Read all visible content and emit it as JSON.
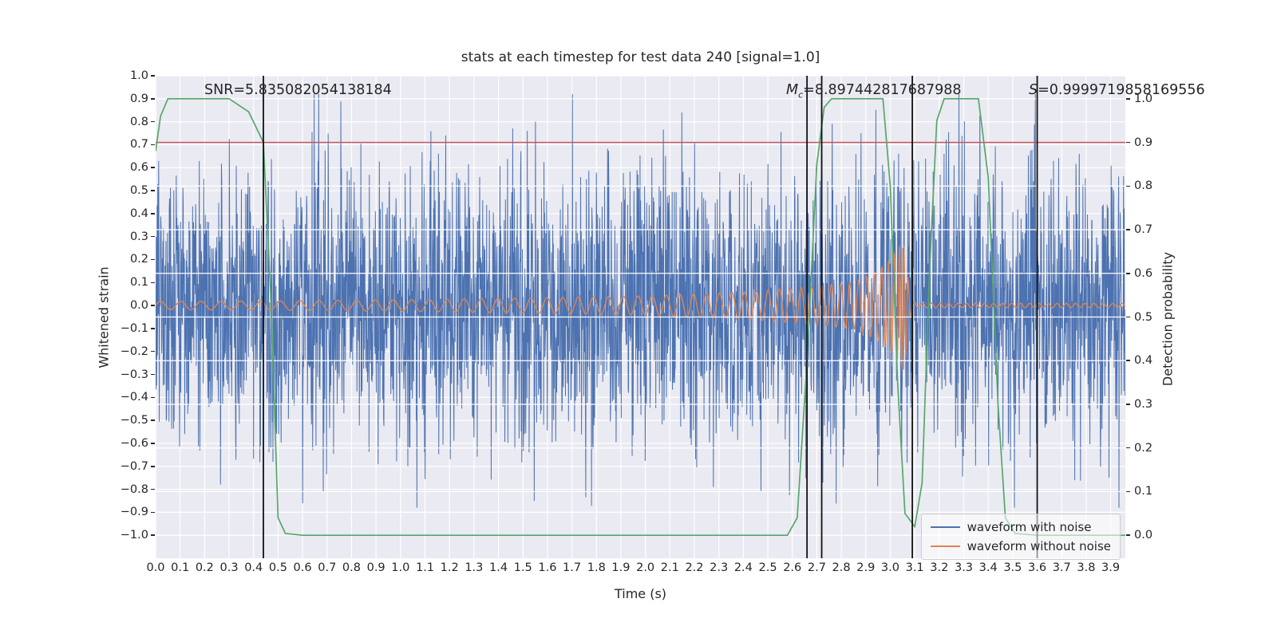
{
  "chart_data": {
    "type": "line",
    "title": "stats at each timestep for test data 240 [signal=1.0]",
    "xlabel": "Time (s)",
    "ylabel_left": "Whitened strain",
    "ylabel_right": "Detection probability",
    "xlim": [
      0,
      3.96
    ],
    "ylim_left": [
      -1.1,
      1.0
    ],
    "right_axis_map": {
      "r0_left_value": -1.0,
      "r1_left_value": 0.9
    },
    "grid": true,
    "background": "#eaeaf2",
    "grid_color": "#ffffff",
    "x_tick_labels": [
      "0.0",
      "0.1",
      "0.2",
      "0.3",
      "0.4",
      "0.5",
      "0.6",
      "0.7",
      "0.8",
      "0.9",
      "1.0",
      "1.1",
      "1.2",
      "1.3",
      "1.4",
      "1.5",
      "1.6",
      "1.7",
      "1.8",
      "1.9",
      "2.0",
      "2.1",
      "2.2",
      "2.3",
      "2.4",
      "2.5",
      "2.6",
      "2.7",
      "2.8",
      "2.9",
      "3.0",
      "3.1",
      "3.2",
      "3.3",
      "3.4",
      "3.5",
      "3.6",
      "3.7",
      "3.8",
      "3.9"
    ],
    "y_tick_labels_left": [
      "1.0",
      "0.9",
      "0.8",
      "0.7",
      "0.6",
      "0.5",
      "0.4",
      "0.3",
      "0.2",
      "0.1",
      "0.0",
      "−0.1",
      "−0.2",
      "−0.3",
      "−0.4",
      "−0.5",
      "−0.6",
      "−0.7",
      "−0.8",
      "−0.9",
      "−1.0"
    ],
    "y_tick_labels_right": [
      "1.0",
      "0.9",
      "0.8",
      "0.7",
      "0.6",
      "0.5",
      "0.4",
      "0.3",
      "0.2",
      "0.1",
      "0.0"
    ],
    "series": [
      {
        "name": "waveform with noise",
        "color": "#4c72b0",
        "kind": "gaussian_noise_plus_signal",
        "noise_seed": 240,
        "noise_std": 0.3,
        "n_samples": 3200,
        "clip": [
          -0.88,
          0.92
        ]
      },
      {
        "name": "waveform without noise",
        "color": "#dd8452",
        "kind": "chirp",
        "n_samples": 6000,
        "envelope": [
          [
            0,
            0.018
          ],
          [
            0.5,
            0.02
          ],
          [
            1.0,
            0.025
          ],
          [
            1.5,
            0.032
          ],
          [
            2.0,
            0.042
          ],
          [
            2.4,
            0.058
          ],
          [
            2.7,
            0.085
          ],
          [
            2.85,
            0.1
          ],
          [
            2.95,
            0.15
          ],
          [
            3.0,
            0.2
          ],
          [
            3.03,
            0.24
          ],
          [
            3.05,
            0.27
          ],
          [
            3.062,
            0.23
          ],
          [
            3.075,
            0.09
          ],
          [
            3.09,
            0.02
          ],
          [
            3.12,
            0.01
          ],
          [
            3.96,
            0.009
          ]
        ],
        "frequency_hz": [
          [
            0,
            12
          ],
          [
            0.5,
            12.5
          ],
          [
            1.0,
            13.5
          ],
          [
            1.5,
            15
          ],
          [
            2.0,
            17
          ],
          [
            2.4,
            20
          ],
          [
            2.7,
            24
          ],
          [
            2.85,
            28
          ],
          [
            2.95,
            33
          ],
          [
            3.0,
            40
          ],
          [
            3.03,
            48
          ],
          [
            3.05,
            58
          ],
          [
            3.065,
            60
          ],
          [
            3.08,
            40
          ],
          [
            3.12,
            28
          ],
          [
            3.96,
            26
          ]
        ]
      },
      {
        "name": "detection probability",
        "color": "#55a868",
        "axis": "right",
        "kind": "polyline",
        "points": [
          [
            0,
            0.88
          ],
          [
            0.02,
            0.96
          ],
          [
            0.05,
            1
          ],
          [
            0.3,
            1
          ],
          [
            0.38,
            0.97
          ],
          [
            0.44,
            0.9
          ],
          [
            0.47,
            0.55
          ],
          [
            0.5,
            0.04
          ],
          [
            0.53,
            0.004
          ],
          [
            0.6,
            0
          ],
          [
            2.58,
            0
          ],
          [
            2.62,
            0.04
          ],
          [
            2.66,
            0.4
          ],
          [
            2.7,
            0.85
          ],
          [
            2.73,
            0.98
          ],
          [
            2.76,
            1
          ],
          [
            2.97,
            1
          ],
          [
            3.0,
            0.8
          ],
          [
            3.03,
            0.35
          ],
          [
            3.06,
            0.05
          ],
          [
            3.1,
            0.02
          ],
          [
            3.13,
            0.12
          ],
          [
            3.16,
            0.6
          ],
          [
            3.19,
            0.95
          ],
          [
            3.22,
            1
          ],
          [
            3.36,
            1
          ],
          [
            3.4,
            0.82
          ],
          [
            3.44,
            0.3
          ],
          [
            3.47,
            0.04
          ],
          [
            3.51,
            0.004
          ],
          [
            3.6,
            0
          ],
          [
            3.96,
            0
          ]
        ]
      }
    ],
    "threshold_line": {
      "axis": "right",
      "value": 0.9,
      "color": "#c44e52"
    },
    "event_vlines": {
      "x": [
        0.44,
        2.66,
        2.72,
        3.09,
        3.6
      ],
      "color": "#111111"
    }
  },
  "annotations": {
    "snr": {
      "label": "SNR=",
      "value": "5.835082054138184"
    },
    "chirp_mass": {
      "symbol": "M",
      "subscript": "c",
      "eq": "=",
      "value": "8.897442817687988"
    },
    "s_stat": {
      "symbol": "S",
      "eq": "=",
      "value": "0.9999719858169556"
    }
  },
  "legend": {
    "items": [
      {
        "label": "waveform with noise",
        "color": "#4c72b0"
      },
      {
        "label": "waveform without noise",
        "color": "#dd8452"
      }
    ]
  }
}
